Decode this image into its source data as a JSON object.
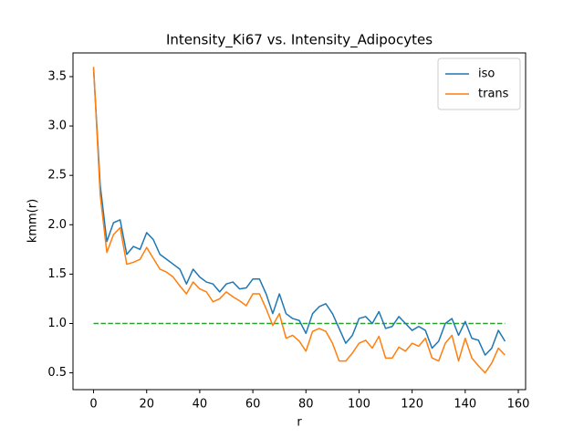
{
  "chart_data": {
    "type": "line",
    "title": "Intensity_Ki67 vs. Intensity_Adipocytes",
    "xlabel": "r",
    "ylabel": "kmm(r)",
    "x": [
      0,
      2.5,
      5,
      7.5,
      10,
      12.5,
      15,
      17.5,
      20,
      22.5,
      25,
      27.5,
      30,
      32.5,
      35,
      37.5,
      40,
      42.5,
      45,
      47.5,
      50,
      52.5,
      55,
      57.5,
      60,
      62.5,
      65,
      67.5,
      70,
      72.5,
      75,
      77.5,
      80,
      82.5,
      85,
      87.5,
      90,
      92.5,
      95,
      97.5,
      100,
      102.5,
      105,
      107.5,
      110,
      112.5,
      115,
      117.5,
      120,
      122.5,
      125,
      127.5,
      130,
      132.5,
      135,
      137.5,
      140,
      142.5,
      145,
      147.5,
      150,
      152.5,
      155
    ],
    "series": [
      {
        "name": "iso",
        "color": "#1f77b4",
        "values": [
          3.58,
          2.4,
          1.83,
          2.02,
          2.05,
          1.7,
          1.78,
          1.75,
          1.92,
          1.85,
          1.7,
          1.65,
          1.6,
          1.55,
          1.4,
          1.55,
          1.47,
          1.42,
          1.4,
          1.32,
          1.4,
          1.42,
          1.35,
          1.36,
          1.45,
          1.45,
          1.3,
          1.1,
          1.3,
          1.1,
          1.05,
          1.03,
          0.9,
          1.1,
          1.17,
          1.2,
          1.1,
          0.95,
          0.8,
          0.88,
          1.05,
          1.07,
          1.0,
          1.12,
          0.95,
          0.97,
          1.07,
          1.0,
          0.93,
          0.97,
          0.93,
          0.75,
          0.82,
          1.0,
          1.05,
          0.88,
          1.02,
          0.85,
          0.83,
          0.68,
          0.75,
          0.93,
          0.82
        ]
      },
      {
        "name": "trans",
        "color": "#ff7f0e",
        "values": [
          3.6,
          2.3,
          1.72,
          1.9,
          1.97,
          1.6,
          1.62,
          1.65,
          1.77,
          1.66,
          1.55,
          1.52,
          1.47,
          1.38,
          1.3,
          1.42,
          1.35,
          1.32,
          1.22,
          1.25,
          1.32,
          1.27,
          1.23,
          1.18,
          1.3,
          1.3,
          1.15,
          0.98,
          1.1,
          0.85,
          0.88,
          0.82,
          0.72,
          0.92,
          0.95,
          0.92,
          0.8,
          0.62,
          0.62,
          0.7,
          0.8,
          0.83,
          0.75,
          0.87,
          0.65,
          0.65,
          0.76,
          0.72,
          0.8,
          0.77,
          0.85,
          0.65,
          0.62,
          0.8,
          0.88,
          0.62,
          0.85,
          0.65,
          0.57,
          0.5,
          0.6,
          0.75,
          0.68
        ]
      }
    ],
    "hlines": [
      {
        "y": 1.0,
        "xmin": 0,
        "xmax": 155,
        "color": "#2ca02c",
        "style": "dashed"
      }
    ],
    "xlim": [
      -7.75,
      162.75
    ],
    "ylim": [
      0.33,
      3.74
    ],
    "xticks": [
      0,
      20,
      40,
      60,
      80,
      100,
      120,
      140,
      160
    ],
    "yticks": [
      0.5,
      {
        "value": 1,
        "label": "1.0"
      },
      1.5,
      {
        "value": 2,
        "label": "2.0"
      },
      2.5,
      {
        "value": 3,
        "label": "3.0"
      },
      3.5
    ],
    "legend": "upper right"
  }
}
